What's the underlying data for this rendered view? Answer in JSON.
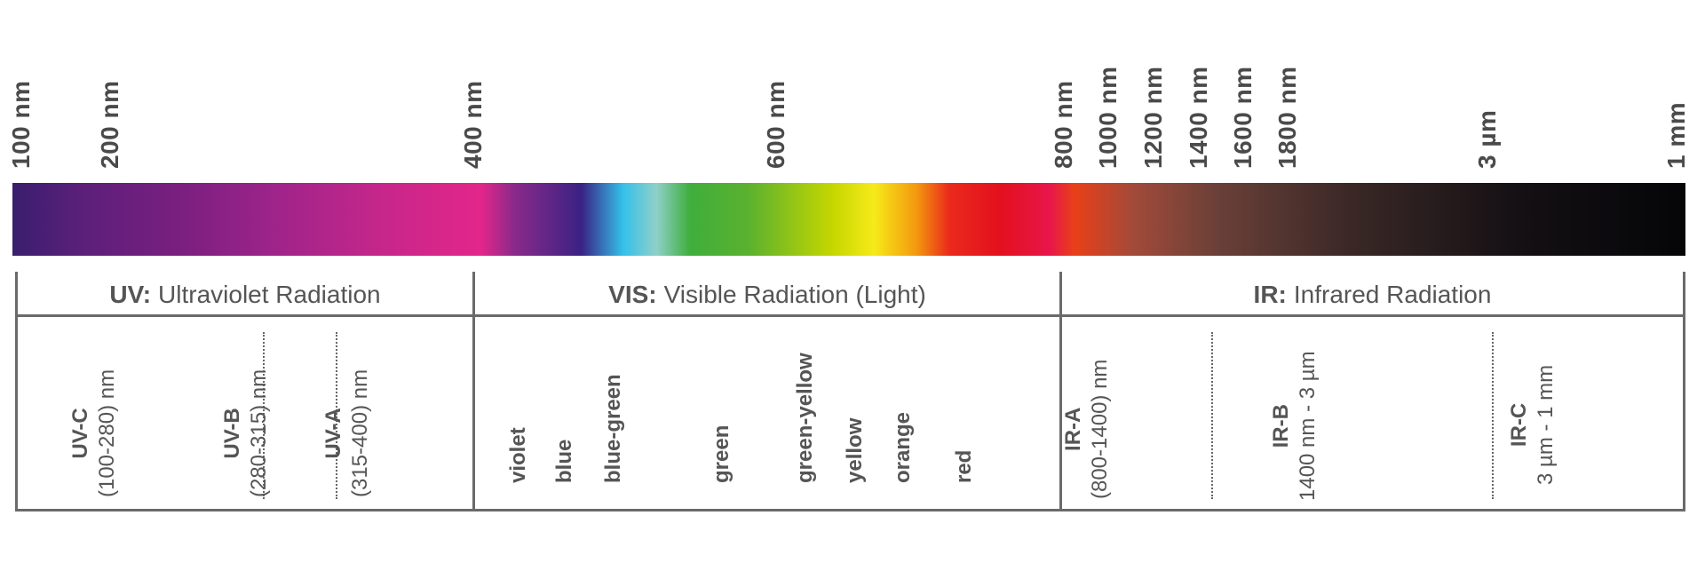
{
  "ticks": [
    "100 nm",
    "200 nm",
    "400 nm",
    "600 nm",
    "800 nm",
    "1000 nm",
    "1200 nm",
    "1400 nm",
    "1600 nm",
    "1800 nm",
    "3 µm",
    "1 mm"
  ],
  "sections": {
    "uv": {
      "abbr": "UV:",
      "name": "Ultraviolet Radiation"
    },
    "vis": {
      "abbr": "VIS:",
      "name": "Visible Radiation (Light)"
    },
    "ir": {
      "abbr": "IR:",
      "name": "Infrared Radiation"
    }
  },
  "uv_bands": [
    {
      "name": "UV-C",
      "range": "(100-280) nm"
    },
    {
      "name": "UV-B",
      "range": "(280-315) nm"
    },
    {
      "name": "UV-A",
      "range": "(315-400) nm"
    }
  ],
  "vis_colors": [
    "violet",
    "blue",
    "blue-green",
    "green",
    "green-yellow",
    "yellow",
    "orange",
    "red"
  ],
  "ir_bands": [
    {
      "name": "IR-A",
      "range": "(800-1400) nm"
    },
    {
      "name": "IR-B",
      "range": "1400 nm - 3 µm"
    },
    {
      "name": "IR-C",
      "range": "3 µm - 1 mm"
    }
  ],
  "colors": {
    "frame": "#6a6a6a",
    "text": "#555555",
    "gradient": [
      "#3a1e6e",
      "#5a1f7a",
      "#7a1f80",
      "#a0248a",
      "#c6268a",
      "#e3268a",
      "#8a2a8a",
      "#3a2284",
      "#35c0ea",
      "#8fd0c8",
      "#3fae3c",
      "#5bb12f",
      "#c5d600",
      "#f6ea1a",
      "#f39a0e",
      "#ea2a1c",
      "#e3101e",
      "#e8164a",
      "#e84018",
      "#a24a3a",
      "#6a4038",
      "#3a2826",
      "#141014",
      "#050507"
    ]
  }
}
